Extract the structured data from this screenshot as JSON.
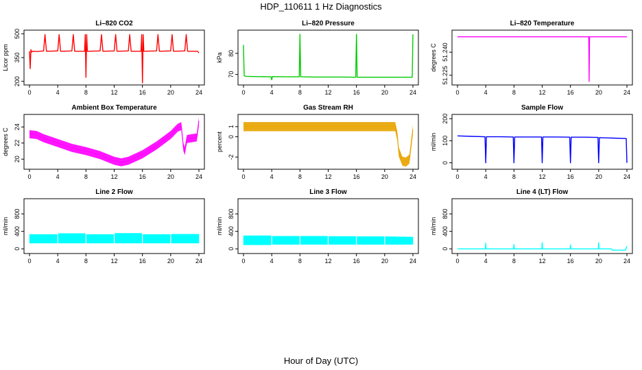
{
  "title": "HDP_110611  1 Hz Diagnostics",
  "xlabel": "Hour of Day (UTC)",
  "chart_data": [
    {
      "type": "line",
      "title": "Li–820 CO2",
      "ylabel": "Licor ppm",
      "color": "#ff0000",
      "xlim": [
        0,
        24
      ],
      "xticks": [
        0,
        4,
        8,
        12,
        16,
        20,
        24
      ],
      "ylim": [
        190,
        510
      ],
      "yticks": [
        200,
        350,
        500
      ],
      "series": [
        {
          "x": [
            0,
            0.1,
            0.2,
            0.3,
            0.5,
            1,
            2,
            2.2,
            2.4,
            4,
            4.2,
            4.4,
            6,
            6.2,
            6.4,
            7.8,
            7.9,
            8,
            8.1,
            8.2,
            10,
            10.2,
            10.4,
            12,
            12.2,
            12.4,
            14,
            14.2,
            14.4,
            15.8,
            15.9,
            16,
            16.1,
            16.2,
            18,
            18.2,
            18.4,
            20,
            20.2,
            20.4,
            22,
            22.2,
            22.4,
            23.8,
            24
          ],
          "y": [
            390,
            280,
            400,
            385,
            390,
            388,
            392,
            495,
            390,
            392,
            495,
            390,
            392,
            495,
            390,
            390,
            495,
            225,
            495,
            390,
            392,
            495,
            390,
            392,
            495,
            390,
            392,
            495,
            390,
            390,
            495,
            190,
            495,
            390,
            392,
            495,
            390,
            392,
            495,
            390,
            392,
            495,
            390,
            390,
            380
          ]
        }
      ]
    },
    {
      "type": "line",
      "title": "Li–820 Pressure",
      "ylabel": "kPa",
      "color": "#00cc00",
      "xlim": [
        0,
        24
      ],
      "xticks": [
        0,
        4,
        8,
        12,
        16,
        20,
        24
      ],
      "ylim": [
        66,
        90
      ],
      "yticks": [
        70,
        80
      ],
      "series": [
        {
          "x": [
            0,
            0.05,
            0.1,
            0.2,
            0.4,
            2,
            3.9,
            4,
            4.1,
            6,
            7.9,
            8,
            8.1,
            10,
            12,
            14,
            15.9,
            16,
            16.1,
            18,
            20,
            22,
            23.9,
            24
          ],
          "y": [
            84,
            76,
            69.5,
            69.2,
            69.1,
            69,
            68.9,
            67.5,
            69,
            68.9,
            68.9,
            89,
            68.9,
            68.8,
            68.8,
            68.8,
            68.7,
            89,
            68.7,
            68.7,
            68.7,
            68.7,
            68.7,
            89
          ]
        }
      ]
    },
    {
      "type": "line",
      "title": "Li–820 Temperature",
      "ylabel": "degrees C",
      "color": "#ff00ff",
      "xlim": [
        0,
        24
      ],
      "xticks": [
        0,
        4,
        8,
        12,
        16,
        20,
        24
      ],
      "ylim": [
        51.22,
        51.253
      ],
      "yticks": [
        51.225,
        51.24
      ],
      "ytick_labels": [
        "51.225",
        "51.240"
      ],
      "series": [
        {
          "x": [
            0,
            18.6,
            18.65,
            18.7,
            24
          ],
          "y": [
            51.25,
            51.25,
            51.221,
            51.25,
            51.25
          ]
        }
      ]
    },
    {
      "type": "line",
      "title": "Ambient Box Temperature",
      "ylabel": "degrees C",
      "color": "#ff00ff",
      "xlim": [
        0,
        24
      ],
      "xticks": [
        0,
        4,
        8,
        12,
        16,
        20,
        24
      ],
      "ylim": [
        19,
        25.3
      ],
      "yticks": [
        20,
        22,
        24
      ],
      "band": 0.5,
      "series": [
        {
          "x": [
            0,
            1,
            2,
            4,
            6,
            8,
            10,
            12,
            13,
            14,
            16,
            18,
            20,
            21,
            21.5,
            21.8,
            22,
            22.3,
            23,
            23.7,
            24
          ],
          "y": [
            23.1,
            23,
            22.6,
            22,
            21.4,
            21,
            20.5,
            19.8,
            19.6,
            19.8,
            20.6,
            21.7,
            23,
            23.9,
            24.1,
            21.5,
            21,
            22.5,
            22.6,
            22.7,
            24.7
          ]
        }
      ]
    },
    {
      "type": "line",
      "title": "Gas Stream RH",
      "ylabel": "percent",
      "color": "#e8a400",
      "xlim": [
        0,
        24
      ],
      "xticks": [
        0,
        4,
        8,
        12,
        16,
        20,
        24
      ],
      "ylim": [
        -3,
        2
      ],
      "yticks": [
        -2,
        0,
        1
      ],
      "band": 0.45,
      "series": [
        {
          "x": [
            0,
            2,
            4,
            6,
            8,
            10,
            12,
            14,
            16,
            18,
            20,
            21.5,
            21.8,
            22,
            22.5,
            23,
            23.5,
            23.8,
            24
          ],
          "y": [
            1,
            1,
            1,
            1,
            1,
            1,
            1,
            1,
            1,
            1,
            1,
            1,
            0,
            -1.5,
            -2.4,
            -2.5,
            -2.2,
            -0.5,
            0.7
          ]
        }
      ]
    },
    {
      "type": "line",
      "title": "Sample Flow",
      "ylabel": "ml/min",
      "color": "#0000ff",
      "xlim": [
        0,
        24
      ],
      "xticks": [
        0,
        4,
        8,
        12,
        16,
        20,
        24
      ],
      "ylim": [
        -20,
        210
      ],
      "yticks": [
        0,
        100,
        200
      ],
      "series": [
        {
          "x": [
            0,
            2,
            3.9,
            4,
            4.1,
            6,
            7.9,
            8,
            8.1,
            10,
            11.9,
            12,
            12.1,
            14,
            15.9,
            16,
            16.1,
            18,
            19.9,
            20,
            20.1,
            22,
            23.9,
            24
          ],
          "y": [
            122,
            120,
            118,
            0,
            118,
            118,
            117,
            0,
            117,
            117,
            117,
            0,
            117,
            117,
            116,
            0,
            116,
            116,
            115,
            0,
            114,
            112,
            110,
            0
          ]
        }
      ]
    },
    {
      "type": "area",
      "title": "Line 2 Flow",
      "ylabel": "ml/min",
      "color": "#00ffff",
      "xlim": [
        0,
        24
      ],
      "xticks": [
        0,
        4,
        8,
        12,
        16,
        20,
        24
      ],
      "ylim": [
        -60,
        1100
      ],
      "yticks": [
        0,
        400,
        800
      ],
      "series": [
        {
          "x": [
            0,
            3.95,
            4.05,
            7.95,
            8.05,
            11.95,
            12.05,
            15.95,
            16.05,
            19.95,
            20.05,
            24
          ],
          "lower": [
            130,
            130,
            130,
            130,
            130,
            130,
            130,
            130,
            130,
            130,
            130,
            130
          ],
          "upper": [
            330,
            330,
            350,
            350,
            330,
            330,
            355,
            355,
            330,
            330,
            335,
            335
          ]
        }
      ]
    },
    {
      "type": "area",
      "title": "Line 3 Flow",
      "ylabel": "ml/min",
      "color": "#00ffff",
      "xlim": [
        0,
        24
      ],
      "xticks": [
        0,
        4,
        8,
        12,
        16,
        20,
        24
      ],
      "ylim": [
        -60,
        1100
      ],
      "yticks": [
        0,
        400,
        800
      ],
      "series": [
        {
          "x": [
            0,
            3.95,
            4.05,
            7.95,
            8.05,
            11.95,
            12.05,
            15.95,
            16.05,
            19.95,
            20.05,
            24
          ],
          "lower": [
            90,
            90,
            100,
            100,
            100,
            100,
            100,
            100,
            100,
            100,
            100,
            100
          ],
          "upper": [
            300,
            300,
            290,
            290,
            290,
            290,
            285,
            285,
            280,
            280,
            280,
            270
          ]
        }
      ]
    },
    {
      "type": "line",
      "title": "Line 4 (LT) Flow",
      "ylabel": "ml/min",
      "color": "#00ffff",
      "xlim": [
        0,
        24
      ],
      "xticks": [
        0,
        4,
        8,
        12,
        16,
        20,
        24
      ],
      "ylim": [
        -60,
        1100
      ],
      "yticks": [
        0,
        400,
        800
      ],
      "series": [
        {
          "x": [
            0,
            3.95,
            4,
            4.05,
            7.95,
            8,
            8.05,
            11.95,
            12,
            12.05,
            15.95,
            16,
            16.05,
            19.95,
            20,
            20.05,
            21.8,
            21.9,
            23.8,
            24
          ],
          "y": [
            0,
            0,
            130,
            0,
            0,
            100,
            0,
            0,
            140,
            0,
            0,
            90,
            0,
            0,
            140,
            0,
            0,
            -30,
            -30,
            60
          ]
        }
      ]
    }
  ]
}
